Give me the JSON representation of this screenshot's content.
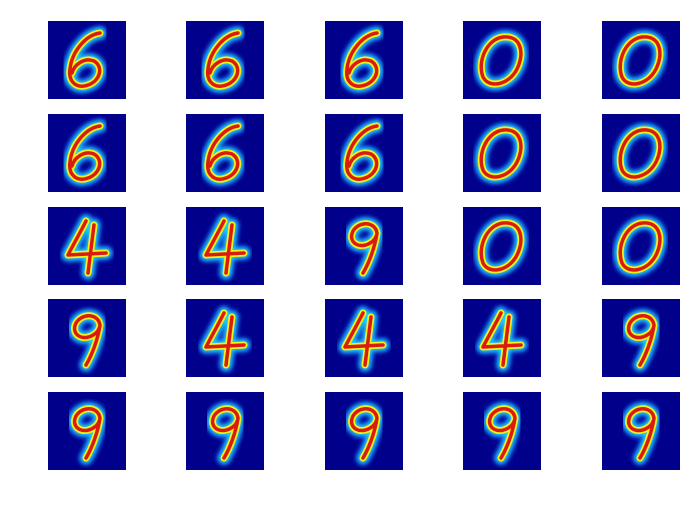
{
  "figure": {
    "colormap": "jet",
    "background_color": "#ffffff",
    "tile_background_color": "#00008b",
    "rows": 5,
    "cols": 5
  },
  "tiles": [
    {
      "digit": "6"
    },
    {
      "digit": "6"
    },
    {
      "digit": "6"
    },
    {
      "digit": "0"
    },
    {
      "digit": "0"
    },
    {
      "digit": "6"
    },
    {
      "digit": "6"
    },
    {
      "digit": "6"
    },
    {
      "digit": "0"
    },
    {
      "digit": "0"
    },
    {
      "digit": "4"
    },
    {
      "digit": "4"
    },
    {
      "digit": "9"
    },
    {
      "digit": "0"
    },
    {
      "digit": "0"
    },
    {
      "digit": "9"
    },
    {
      "digit": "4"
    },
    {
      "digit": "4"
    },
    {
      "digit": "4"
    },
    {
      "digit": "9"
    },
    {
      "digit": "9"
    },
    {
      "digit": "9"
    },
    {
      "digit": "9"
    },
    {
      "digit": "9"
    },
    {
      "digit": "9"
    }
  ]
}
